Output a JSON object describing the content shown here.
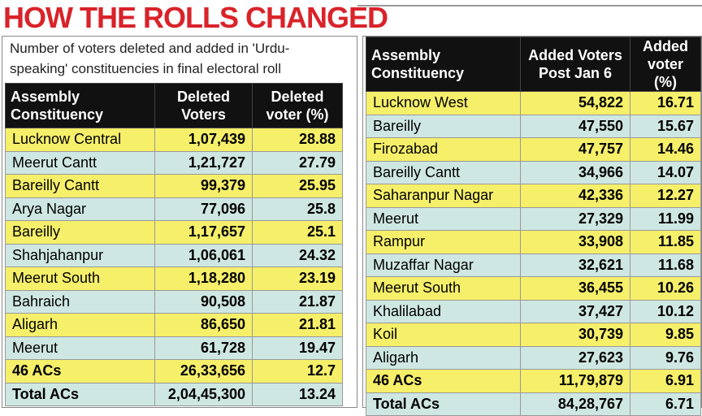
{
  "title": "HOW THE ROLLS CHANGED",
  "left": {
    "note": "Number of voters deleted and added in 'Urdu-speaking' constituencies in final electoral roll",
    "header": [
      "Assembly Constituency",
      "Deleted Voters",
      "Deleted voter (%)"
    ],
    "rows": [
      [
        "Lucknow Central",
        "1,07,439",
        "28.88"
      ],
      [
        "Meerut Cantt",
        "1,21,727",
        "27.79"
      ],
      [
        "Bareilly Cantt",
        "99,379",
        "25.95"
      ],
      [
        "Arya Nagar",
        "77,096",
        "25.8"
      ],
      [
        "Bareilly",
        "1,17,657",
        "25.1"
      ],
      [
        "Shahjahanpur",
        "1,06,061",
        "24.32"
      ],
      [
        "Meerut South",
        "1,18,280",
        "23.19"
      ],
      [
        "Bahraich",
        "90,508",
        "21.87"
      ],
      [
        "Aligarh",
        "86,650",
        "21.81"
      ],
      [
        "Meerut",
        "61,728",
        "19.47"
      ],
      [
        "46 ACs",
        "26,33,656",
        "12.7"
      ],
      [
        "Total ACs",
        "2,04,45,300",
        "13.24"
      ]
    ]
  },
  "right": {
    "header": [
      "Assembly Constituency",
      "Added Voters Post Jan 6",
      "Added voter (%)"
    ],
    "rows": [
      [
        "Lucknow West",
        "54,822",
        "16.71"
      ],
      [
        "Bareilly",
        "47,550",
        "15.67"
      ],
      [
        "Firozabad",
        "47,757",
        "14.46"
      ],
      [
        "Bareilly Cantt",
        "34,966",
        "14.07"
      ],
      [
        "Saharanpur Nagar",
        "42,336",
        "12.27"
      ],
      [
        "Meerut",
        "27,329",
        "11.99"
      ],
      [
        "Rampur",
        "33,908",
        "11.85"
      ],
      [
        "Muzaffar Nagar",
        "32,621",
        "11.68"
      ],
      [
        "Meerut South",
        "36,455",
        "10.26"
      ],
      [
        "Khalilabad",
        "37,427",
        "10.12"
      ],
      [
        "Koil",
        "30,739",
        "9.85"
      ],
      [
        "Aligarh",
        "27,623",
        "9.76"
      ],
      [
        "46 ACs",
        "11,79,879",
        "6.91"
      ],
      [
        "Total ACs",
        "84,28,767",
        "6.71"
      ]
    ]
  }
}
